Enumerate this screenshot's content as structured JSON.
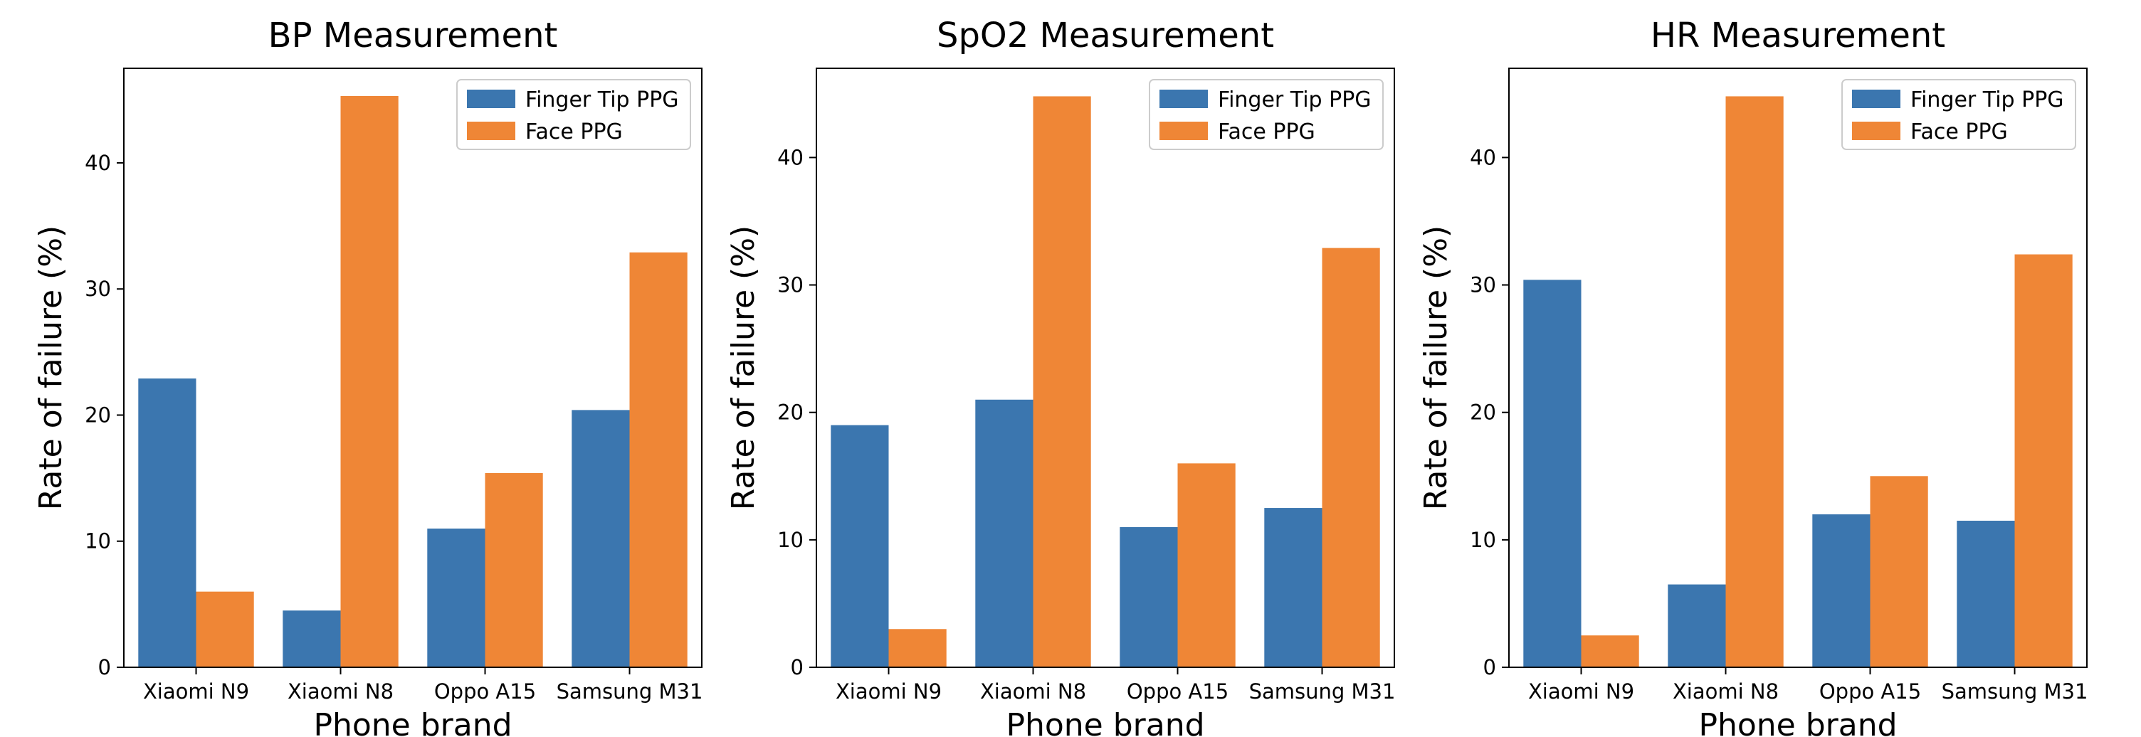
{
  "chart_data": [
    {
      "type": "bar",
      "title": "BP Measurement",
      "xlabel": "Phone brand",
      "ylabel": "Rate of failure (%)",
      "categories": [
        "Xiaomi N9",
        "Xiaomi N8",
        "Oppo A15",
        "Samsung M31"
      ],
      "ylim": [
        0,
        47.5
      ],
      "yticks": [
        0,
        10,
        20,
        30,
        40
      ],
      "legend_position": "upper right",
      "series": [
        {
          "name": "Finger Tip PPG",
          "color": "#3b76af",
          "values": [
            22.9,
            4.5,
            11.0,
            20.4
          ]
        },
        {
          "name": "Face PPG",
          "color": "#ef8636",
          "values": [
            6.0,
            45.3,
            15.4,
            32.9
          ]
        }
      ]
    },
    {
      "type": "bar",
      "title": "SpO2 Measurement",
      "xlabel": "Phone brand",
      "ylabel": "Rate of failure (%)",
      "categories": [
        "Xiaomi N9",
        "Xiaomi N8",
        "Oppo A15",
        "Samsung M31"
      ],
      "ylim": [
        0,
        47
      ],
      "yticks": [
        0,
        10,
        20,
        30,
        40
      ],
      "legend_position": "upper right",
      "series": [
        {
          "name": "Finger Tip PPG",
          "color": "#3b76af",
          "values": [
            19.0,
            21.0,
            11.0,
            12.5
          ]
        },
        {
          "name": "Face PPG",
          "color": "#ef8636",
          "values": [
            3.0,
            44.8,
            16.0,
            32.9
          ]
        }
      ]
    },
    {
      "type": "bar",
      "title": "HR Measurement",
      "xlabel": "Phone brand",
      "ylabel": "Rate of failure (%)",
      "categories": [
        "Xiaomi N9",
        "Xiaomi N8",
        "Oppo A15",
        "Samsung M31"
      ],
      "ylim": [
        0,
        47
      ],
      "yticks": [
        0,
        10,
        20,
        30,
        40
      ],
      "legend_position": "upper right",
      "series": [
        {
          "name": "Finger Tip PPG",
          "color": "#3b76af",
          "values": [
            30.4,
            6.5,
            12.0,
            11.5
          ]
        },
        {
          "name": "Face PPG",
          "color": "#ef8636",
          "values": [
            2.5,
            44.8,
            15.0,
            32.4
          ]
        }
      ]
    }
  ]
}
